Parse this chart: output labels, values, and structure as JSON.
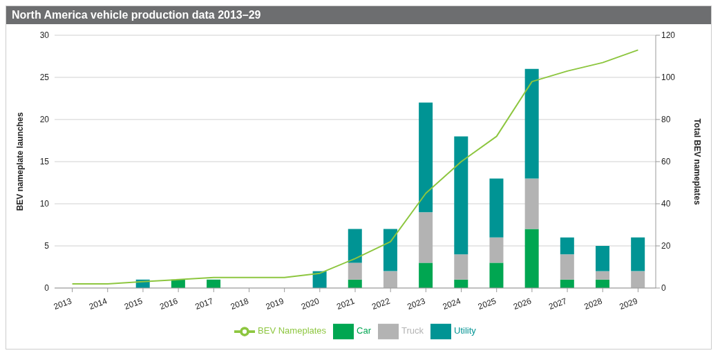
{
  "chart_data": {
    "type": "bar",
    "title": "North America vehicle production data 2013–29",
    "ylabel": "BEV nameplate launches",
    "y2label": "Total BEV nameplates",
    "categories": [
      "2013",
      "2014",
      "2015",
      "2016",
      "2017",
      "2018",
      "2019",
      "2020",
      "2021",
      "2022",
      "2023",
      "2024",
      "2025",
      "2026",
      "2027",
      "2028",
      "2029"
    ],
    "stacked": true,
    "grid": "y",
    "legend": "bottom",
    "ylim": [
      0,
      30
    ],
    "yticks": [
      0,
      5,
      10,
      15,
      20,
      25,
      30
    ],
    "y2lim": [
      0,
      120
    ],
    "y2ticks": [
      0,
      20,
      40,
      60,
      80,
      100,
      120
    ],
    "series": [
      {
        "name": "Car",
        "color": "#00a651",
        "values": [
          0,
          0,
          0,
          1,
          1,
          0,
          0,
          0,
          1,
          0,
          3,
          1,
          3,
          7,
          1,
          1,
          0
        ]
      },
      {
        "name": "Truck",
        "color": "#b3b3b3",
        "values": [
          0,
          0,
          0,
          0,
          0,
          0,
          0,
          0,
          2,
          2,
          6,
          3,
          3,
          6,
          3,
          1,
          2
        ]
      },
      {
        "name": "Utility",
        "color": "#009494",
        "values": [
          0,
          0,
          1,
          0,
          0,
          0,
          0,
          2,
          4,
          5,
          13,
          14,
          7,
          13,
          2,
          3,
          4
        ]
      },
      {
        "name": "BEV Nameplates",
        "type": "line",
        "axis": "y2",
        "color": "#8dc63f",
        "values": [
          2,
          2,
          3,
          4,
          5,
          5,
          5,
          7,
          14,
          22,
          45,
          60,
          72,
          98,
          103,
          107,
          113
        ]
      }
    ]
  }
}
